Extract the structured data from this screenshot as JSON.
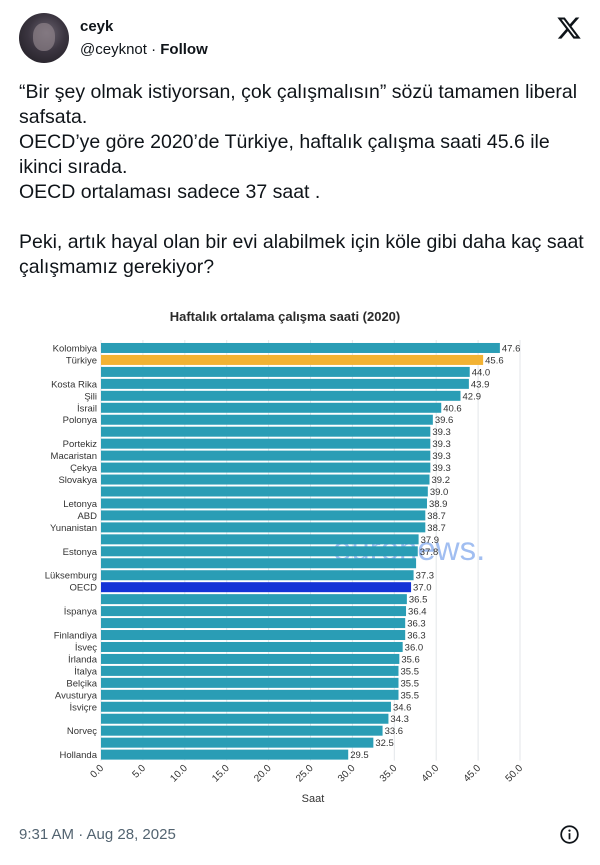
{
  "tweet": {
    "display_name": "ceyk",
    "handle": "@ceyknot",
    "separator": "·",
    "follow_label": "Follow",
    "text_lines": [
      "“Bir şey olmak istiyorsan, çok çalışmalısın” sözü tamamen liberal safsata.",
      "OECD’ye göre 2020’de Türkiye, haftalık çalışma saati 45.6 ile ikinci sırada.",
      "OECD ortalaması sadece 37 saat ."
    ],
    "text_question": "Peki, artık hayal olan bir evi alabilmek için köle gibi daha kaç saat çalışmamız gerekiyor?",
    "timestamp": "9:31 AM · Aug 28, 2025"
  },
  "icons": {
    "platform": "x-logo-icon",
    "info": "info-icon"
  },
  "colors": {
    "bar": "#2a9db5",
    "highlight_turkey": "#f2b233",
    "highlight_oecd": "#1433d6"
  },
  "chart_data": {
    "type": "bar",
    "orientation": "horizontal",
    "title": "Haftalık ortalama çalışma saati (2020)",
    "xlabel": "Saat",
    "xlim": [
      0,
      50
    ],
    "xticks": [
      "0.0",
      "5.0",
      "10.0",
      "15.0",
      "20.0",
      "25.0",
      "30.0",
      "35.0",
      "40.0",
      "45.0",
      "50.0"
    ],
    "grid": true,
    "watermark": "euronews.",
    "categories": [
      "Kolombiya",
      "Türkiye",
      "",
      "Kosta Rika",
      "Şili",
      "İsrail",
      "Polonya",
      "",
      "Portekiz",
      "Macaristan",
      "Çekya",
      "Slovakya",
      "",
      "Letonya",
      "ABD",
      "Yunanistan",
      "",
      "Estonya",
      "",
      "Lüksemburg",
      "OECD",
      "",
      "İspanya",
      "",
      "Finlandiya",
      "İsveç",
      "İrlanda",
      "İtalya",
      "Belçika",
      "Avusturya",
      "İsviçre",
      "",
      "Norveç",
      "",
      "Hollanda"
    ],
    "values": [
      47.6,
      45.6,
      44.0,
      43.9,
      42.9,
      40.6,
      39.6,
      39.3,
      39.3,
      39.3,
      39.3,
      39.2,
      39.0,
      38.9,
      38.7,
      38.7,
      37.9,
      37.8,
      37.6,
      37.3,
      37.0,
      36.5,
      36.4,
      36.3,
      36.3,
      36.0,
      35.6,
      35.5,
      35.5,
      35.5,
      34.6,
      34.3,
      33.6,
      32.5,
      29.5
    ],
    "value_labels": [
      "47.6",
      "45.6",
      "44.0",
      "43.9",
      "42.9",
      "40.6",
      "39.6",
      "39.3",
      "39.3",
      "39.3",
      "39.3",
      "39.2",
      "39.0",
      "38.9",
      "38.7",
      "38.7",
      "37.9",
      "37.8",
      "",
      "37.3",
      "37.0",
      "36.5",
      "36.4",
      "36.3",
      "36.3",
      "36.0",
      "35.6",
      "35.5",
      "35.5",
      "35.5",
      "34.6",
      "34.3",
      "33.6",
      "32.5",
      "29.5"
    ],
    "highlights": {
      "Türkiye": "#f2b233",
      "OECD": "#1433d6"
    }
  }
}
